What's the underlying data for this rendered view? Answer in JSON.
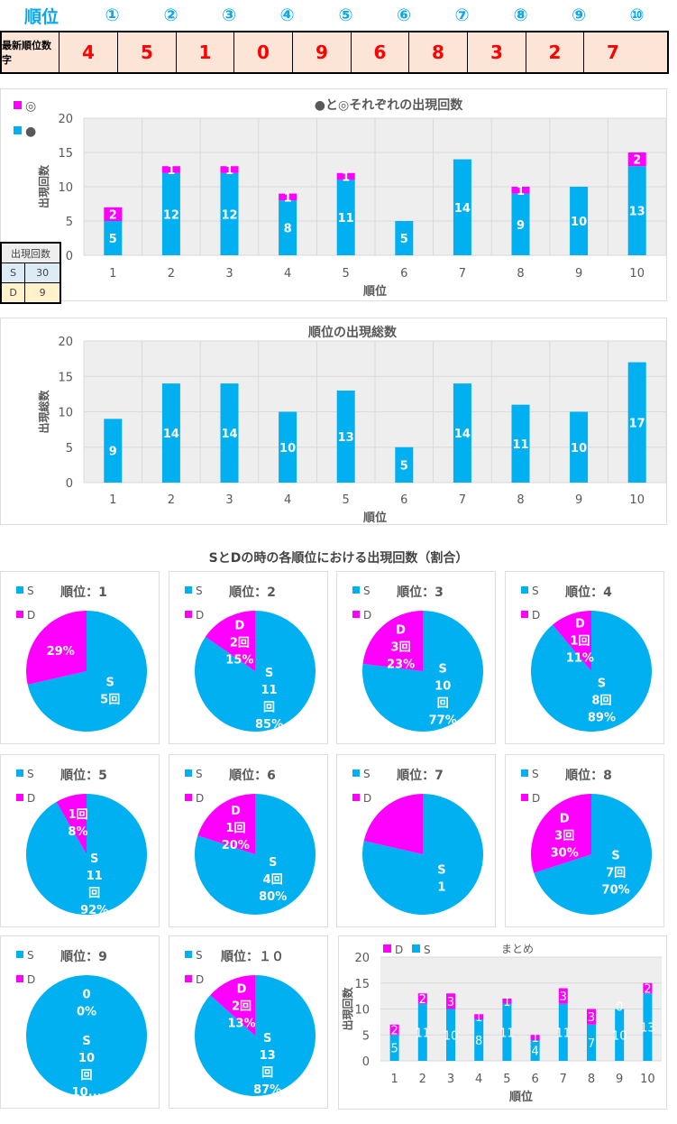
{
  "header": {
    "title": "順位",
    "ranks": [
      "①",
      "②",
      "③",
      "④",
      "⑤",
      "⑥",
      "⑦",
      "⑧",
      "⑨",
      "⑩"
    ]
  },
  "latest": {
    "label": "最新順位数字",
    "digits": [
      "4",
      "5",
      "1",
      "0",
      "9",
      "6",
      "8",
      "3",
      "2",
      "7"
    ]
  },
  "colors": {
    "s": "#00b0f0",
    "d": "#ff00ff",
    "accent": "#0aa8e8",
    "red": "#ff0000"
  },
  "count_table": {
    "header": "出現回数",
    "rows": [
      {
        "k": "S",
        "v": "30"
      },
      {
        "k": "D",
        "v": "9"
      }
    ]
  },
  "section_title": "SとDの時の各順位における出現回数（割合）",
  "chart_data": [
    {
      "type": "bar",
      "stacked": true,
      "title": "●と◎それぞれの出現回数",
      "xlabel": "順位",
      "ylabel": "出現回数",
      "ylim": [
        0,
        20
      ],
      "yticks": [
        0,
        5,
        10,
        15,
        20
      ],
      "categories": [
        "1",
        "2",
        "3",
        "4",
        "5",
        "6",
        "7",
        "8",
        "9",
        "10"
      ],
      "legend": [
        "◎",
        "●"
      ],
      "legend_position": "top-left",
      "grid": true,
      "series": [
        {
          "name": "●",
          "values": [
            5,
            12,
            12,
            8,
            11,
            5,
            14,
            9,
            10,
            13
          ]
        },
        {
          "name": "◎",
          "values": [
            2,
            1,
            1,
            1,
            1,
            0,
            0,
            1,
            0,
            2
          ]
        }
      ]
    },
    {
      "type": "bar",
      "title": "順位の出現総数",
      "xlabel": "順位",
      "ylabel": "出現総数",
      "ylim": [
        0,
        20
      ],
      "yticks": [
        0,
        5,
        10,
        15,
        20
      ],
      "categories": [
        "1",
        "2",
        "3",
        "4",
        "5",
        "6",
        "7",
        "8",
        "9",
        "10"
      ],
      "grid": true,
      "series": [
        {
          "name": "総数",
          "values": [
            9,
            14,
            14,
            10,
            13,
            5,
            14,
            11,
            10,
            17
          ]
        }
      ]
    },
    {
      "type": "pie",
      "pies": [
        {
          "title": "順位：1",
          "s": 5,
          "d": 2,
          "s_label": [
            "S",
            "5回"
          ],
          "d_label": [
            "29%"
          ]
        },
        {
          "title": "順位：2",
          "s": 11,
          "d": 2,
          "s_label": [
            "S",
            "11",
            "回",
            "85%"
          ],
          "d_label": [
            "D",
            "2回",
            "15%"
          ]
        },
        {
          "title": "順位：3",
          "s": 10,
          "d": 3,
          "s_label": [
            "S",
            "10",
            "回",
            "77%"
          ],
          "d_label": [
            "D",
            "3回",
            "23%"
          ]
        },
        {
          "title": "順位：4",
          "s": 8,
          "d": 1,
          "s_label": [
            "S",
            "8回",
            "89%"
          ],
          "d_label": [
            "D",
            "1回",
            "11%"
          ]
        },
        {
          "title": "順位：5",
          "s": 11,
          "d": 1,
          "s_label": [
            "S",
            "11",
            "回",
            "92%"
          ],
          "d_label": [
            "1回",
            "8%"
          ]
        },
        {
          "title": "順位：6",
          "s": 4,
          "d": 1,
          "s_label": [
            "S",
            "4回",
            "80%"
          ],
          "d_label": [
            "D",
            "1回",
            "20%"
          ]
        },
        {
          "title": "順位：7",
          "s": 11,
          "d": 3,
          "s_label": [
            "S",
            "1"
          ],
          "d_label": []
        },
        {
          "title": "順位：8",
          "s": 7,
          "d": 3,
          "s_label": [
            "S",
            "7回",
            "70%"
          ],
          "d_label": [
            "D",
            "3回",
            "30%"
          ]
        },
        {
          "title": "順位：9",
          "s": 10,
          "d": 0,
          "s_label": [
            "S",
            "10",
            "回",
            "10..."
          ],
          "d_label": [
            "0",
            "0%"
          ]
        },
        {
          "title": "順位：１０",
          "s": 13,
          "d": 2,
          "s_label": [
            "S",
            "13",
            "回",
            "87%"
          ],
          "d_label": [
            "D",
            "2回",
            "13%"
          ]
        }
      ],
      "legend": [
        "S",
        "D"
      ]
    },
    {
      "type": "bar",
      "stacked": true,
      "title": "まとめ",
      "xlabel": "順位",
      "ylabel": "出現回数",
      "ylim": [
        0,
        20
      ],
      "yticks": [
        0,
        5,
        10,
        15,
        20
      ],
      "categories": [
        "1",
        "2",
        "3",
        "4",
        "5",
        "6",
        "7",
        "8",
        "9",
        "10"
      ],
      "legend": [
        "D",
        "S"
      ],
      "legend_position": "top-left",
      "series": [
        {
          "name": "S",
          "values": [
            5,
            11,
            10,
            8,
            11,
            4,
            11,
            7,
            10,
            13
          ]
        },
        {
          "name": "D",
          "values": [
            2,
            2,
            3,
            1,
            1,
            1,
            3,
            3,
            0,
            2
          ]
        }
      ]
    }
  ]
}
